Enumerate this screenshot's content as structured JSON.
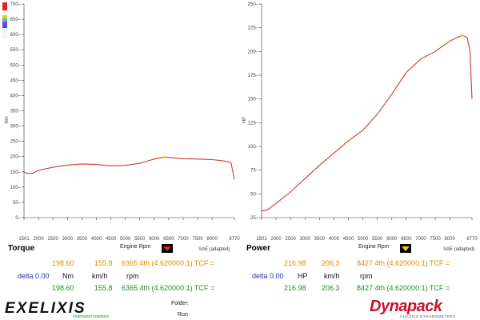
{
  "torque": {
    "header": "Torque",
    "y_title": "Nm",
    "x_title": "Engine Rpm",
    "sae": "SAE (adapted)",
    "row1": {
      "v1": "198.60",
      "v2": "155.8",
      "v3": "6365 4th (4.620000:1) TCF ="
    },
    "delta": {
      "label": "delta 0.00",
      "unit1": "Nm",
      "unit2": "km/h",
      "unit3": "rpm"
    },
    "row2": {
      "v1": "198.60",
      "v2": "155.8",
      "v3": "6365 4th (4.620000:1) TCF ="
    }
  },
  "power": {
    "header": "Power",
    "y_title": "HP",
    "x_title": "Engine Rpm",
    "sae": "SAE (adapted)",
    "row1": {
      "v1": "216.98",
      "v2": "206.3",
      "v3": "8427 4th (4.620000:1) TCF ="
    },
    "delta": {
      "label": "delta 0.00",
      "unit1": "HP",
      "unit2": "km/h",
      "unit3": "rpm"
    },
    "row2": {
      "v1": "216.98",
      "v2": "206.3",
      "v3": "8427 4th (4.620000:1) TCF ="
    }
  },
  "footer": {
    "logo_left": "exelixis",
    "logo_left_sub": "motorsport solutions",
    "folder_label": "Folder:",
    "run_label": "Run",
    "logo_right": "Dynapack",
    "logo_right_sub": "CHASSIS DYNAMOMETERS"
  },
  "colors": {
    "curve": "#d23a2a",
    "marker_torque": "#e02020",
    "marker_power": "#f0d000"
  },
  "chart_data": [
    {
      "type": "line",
      "title": "Torque",
      "xlabel": "Engine Rpm",
      "ylabel": "Nm",
      "xlim": [
        1501,
        8770
      ],
      "ylim": [
        0,
        700
      ],
      "x_ticks": [
        1501,
        2000,
        2500,
        3000,
        3500,
        4000,
        4500,
        5000,
        5500,
        6000,
        6500,
        7000,
        7500,
        8000,
        8770
      ],
      "y_ticks": [
        0,
        50,
        100,
        150,
        200,
        250,
        300,
        350,
        400,
        450,
        500,
        550,
        600,
        650,
        700
      ],
      "series": [
        {
          "x": [
            1501,
            1600,
            1800,
            2000,
            2500,
            3000,
            3500,
            4000,
            4500,
            5000,
            5500,
            6000,
            6365,
            6500,
            7000,
            7500,
            8000,
            8400,
            8650,
            8770
          ],
          "y": [
            150,
            145,
            145,
            155,
            165,
            172,
            176,
            174,
            170,
            171,
            178,
            192,
            198.6,
            197,
            193,
            192,
            190,
            186,
            180,
            125
          ]
        }
      ]
    },
    {
      "type": "line",
      "title": "Power",
      "xlabel": "Engine Rpm",
      "ylabel": "HP",
      "xlim": [
        1501,
        8770
      ],
      "ylim": [
        25,
        250
      ],
      "x_ticks": [
        1501,
        2000,
        2500,
        3000,
        3500,
        4000,
        4500,
        5000,
        5500,
        6000,
        6500,
        7000,
        7500,
        8000,
        8770
      ],
      "y_ticks": [
        25,
        50,
        75,
        100,
        125,
        150,
        175,
        200,
        225,
        250
      ],
      "series": [
        {
          "x": [
            1501,
            1700,
            2000,
            2500,
            3000,
            3500,
            4000,
            4500,
            5000,
            5500,
            6000,
            6500,
            7000,
            7500,
            8000,
            8427,
            8600,
            8700,
            8770
          ],
          "y": [
            32,
            33,
            40,
            52,
            66,
            80,
            93,
            106,
            117,
            134,
            155,
            178,
            192,
            200,
            211,
            216.98,
            215,
            200,
            150
          ]
        }
      ]
    }
  ]
}
